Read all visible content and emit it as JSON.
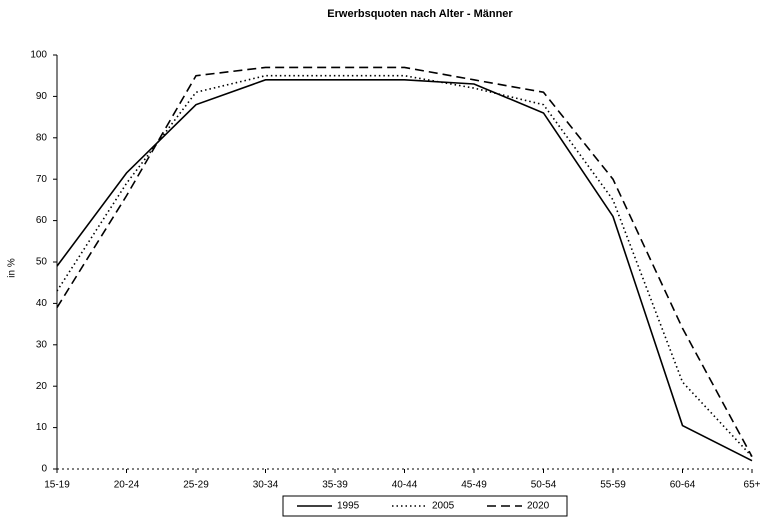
{
  "chart_data": {
    "type": "line",
    "title": "Erwerbsquoten nach Alter - Männer",
    "y_label": "in %",
    "categories": [
      "15-19",
      "20-24",
      "25-29",
      "30-34",
      "35-39",
      "40-44",
      "45-49",
      "50-54",
      "55-59",
      "60-64",
      "65+"
    ],
    "series": [
      {
        "name": "1995",
        "color": "#000000",
        "dash": "solid",
        "values": [
          49,
          71.5,
          88,
          94,
          94,
          94,
          93,
          86,
          61,
          10.5,
          2
        ]
      },
      {
        "name": "2005",
        "color": "#000000",
        "dash": "dotted",
        "values": [
          43,
          69,
          91,
          95,
          95,
          95,
          92,
          88,
          65,
          21,
          3
        ]
      },
      {
        "name": "2020",
        "color": "#000000",
        "dash": "dashed",
        "values": [
          39,
          66,
          95,
          97,
          97,
          97,
          94,
          91,
          70,
          34,
          3
        ]
      }
    ],
    "ylim": [
      0,
      100
    ],
    "yticks": [
      0,
      10,
      20,
      30,
      40,
      50,
      60,
      70,
      80,
      90,
      100
    ],
    "grid": false,
    "legend": "bottom"
  }
}
